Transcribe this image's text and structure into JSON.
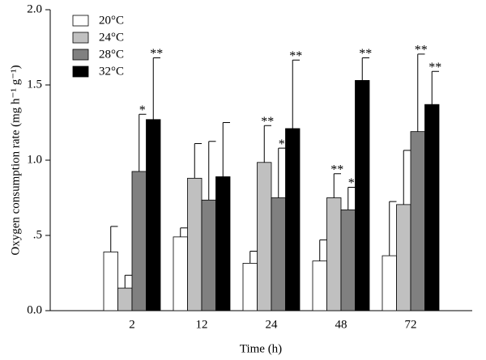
{
  "chart_data": {
    "type": "bar",
    "x_label": "Time (h)",
    "y_label": "Oxygen consumption rate (mg h⁻¹ g⁻¹)",
    "categories": [
      "2",
      "12",
      "24",
      "48",
      "72"
    ],
    "ylim": [
      0,
      2
    ],
    "yticks": [
      {
        "value": 0,
        "label": "0.0"
      },
      {
        "value": 0.5,
        "label": ".5"
      },
      {
        "value": 1,
        "label": "1.0"
      },
      1.5,
      {
        "value": 2,
        "label": "2.0"
      }
    ],
    "legend": "top-left",
    "series": [
      {
        "name": "20°C",
        "color": "#ffffff",
        "values": [
          0.39,
          0.49,
          0.315,
          0.33,
          0.365
        ],
        "errors": [
          0.17,
          0.06,
          0.08,
          0.14,
          0.36
        ],
        "annotations": [
          null,
          null,
          null,
          null,
          null
        ]
      },
      {
        "name": "24°C",
        "color": "#c0c0c0",
        "values": [
          0.15,
          0.88,
          0.985,
          0.75,
          0.705
        ],
        "errors": [
          0.085,
          0.23,
          0.245,
          0.16,
          0.36
        ],
        "annotations": [
          null,
          null,
          "**",
          "**",
          null
        ]
      },
      {
        "name": "28°C",
        "color": "#808080",
        "values": [
          0.925,
          0.735,
          0.75,
          0.67,
          1.19
        ],
        "errors": [
          0.38,
          0.39,
          0.33,
          0.15,
          0.515
        ],
        "annotations": [
          "*",
          null,
          "*",
          "*",
          "**"
        ]
      },
      {
        "name": "32°C",
        "color": "#000000",
        "values": [
          1.27,
          0.89,
          1.21,
          1.53,
          1.37
        ],
        "errors": [
          0.41,
          0.36,
          0.455,
          0.15,
          0.22
        ],
        "annotations": [
          "**",
          null,
          "**",
          "**",
          "**"
        ]
      }
    ]
  }
}
